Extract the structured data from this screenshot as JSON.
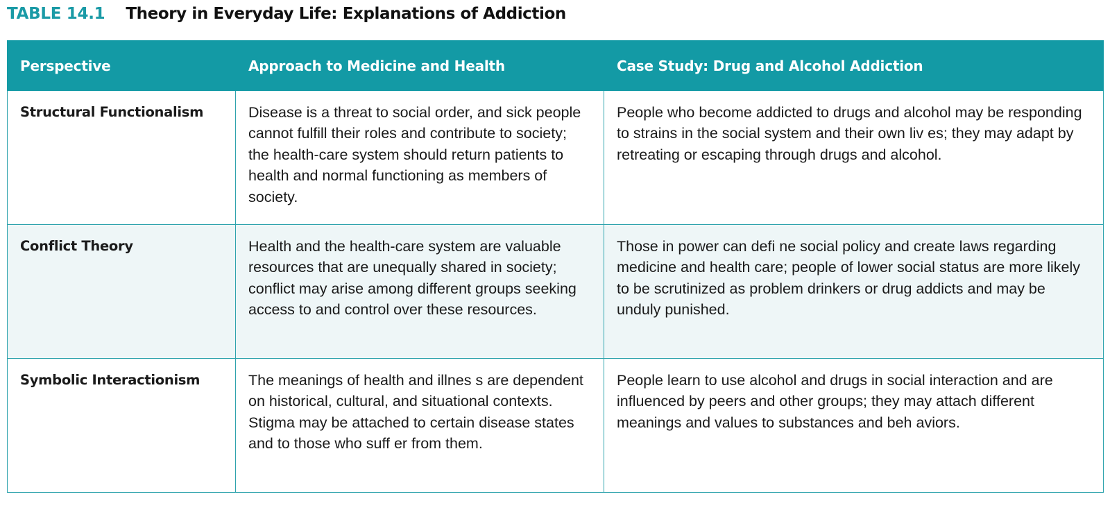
{
  "title": {
    "number": "TABLE 14.1",
    "heading": "Theory in Everyday Life: Explanations of Addiction"
  },
  "table": {
    "headers": [
      "Perspective",
      "Approach to Medicine and Health",
      "Case Study: Drug and Alcohol Addiction"
    ],
    "rows": [
      {
        "perspective": "Structural Functionalism",
        "approach": "Disease is a threat to social order, and sick people cannot fulfill their roles and contribute to society; the health-care system should return patients to health and normal functioning as members of society.",
        "case_study": "People who become addicted to drugs and alcohol may be responding to strains in the social system and their own liv es; they may adapt by retreating or escaping through drugs and alcohol."
      },
      {
        "perspective": "Conflict Theory",
        "approach": "Health and the health-care system are valuable resources that are unequally shared in society; conflict may arise among different groups seeking access to and control over these resources.",
        "case_study": "Those in power can defi ne social policy and create laws regarding medicine and health care; people of lower social status are more likely to be scrutinized as problem drinkers or drug addicts and may be unduly punished."
      },
      {
        "perspective": "Symbolic Interactionism",
        "approach": "The meanings of health and illnes s are dependent on historical, cultural, and situational contexts. Stigma may be attached to certain disease states and to those who suff er from them.",
        "case_study": "People learn to use alcohol and drugs in social interaction and are influenced by peers and other groups; they may attach different meanings and values to substances and beh aviors."
      }
    ]
  },
  "colors": {
    "accent": "#139aa5",
    "title_number": "#1a9aa6",
    "row_tint": "#eef6f7"
  }
}
